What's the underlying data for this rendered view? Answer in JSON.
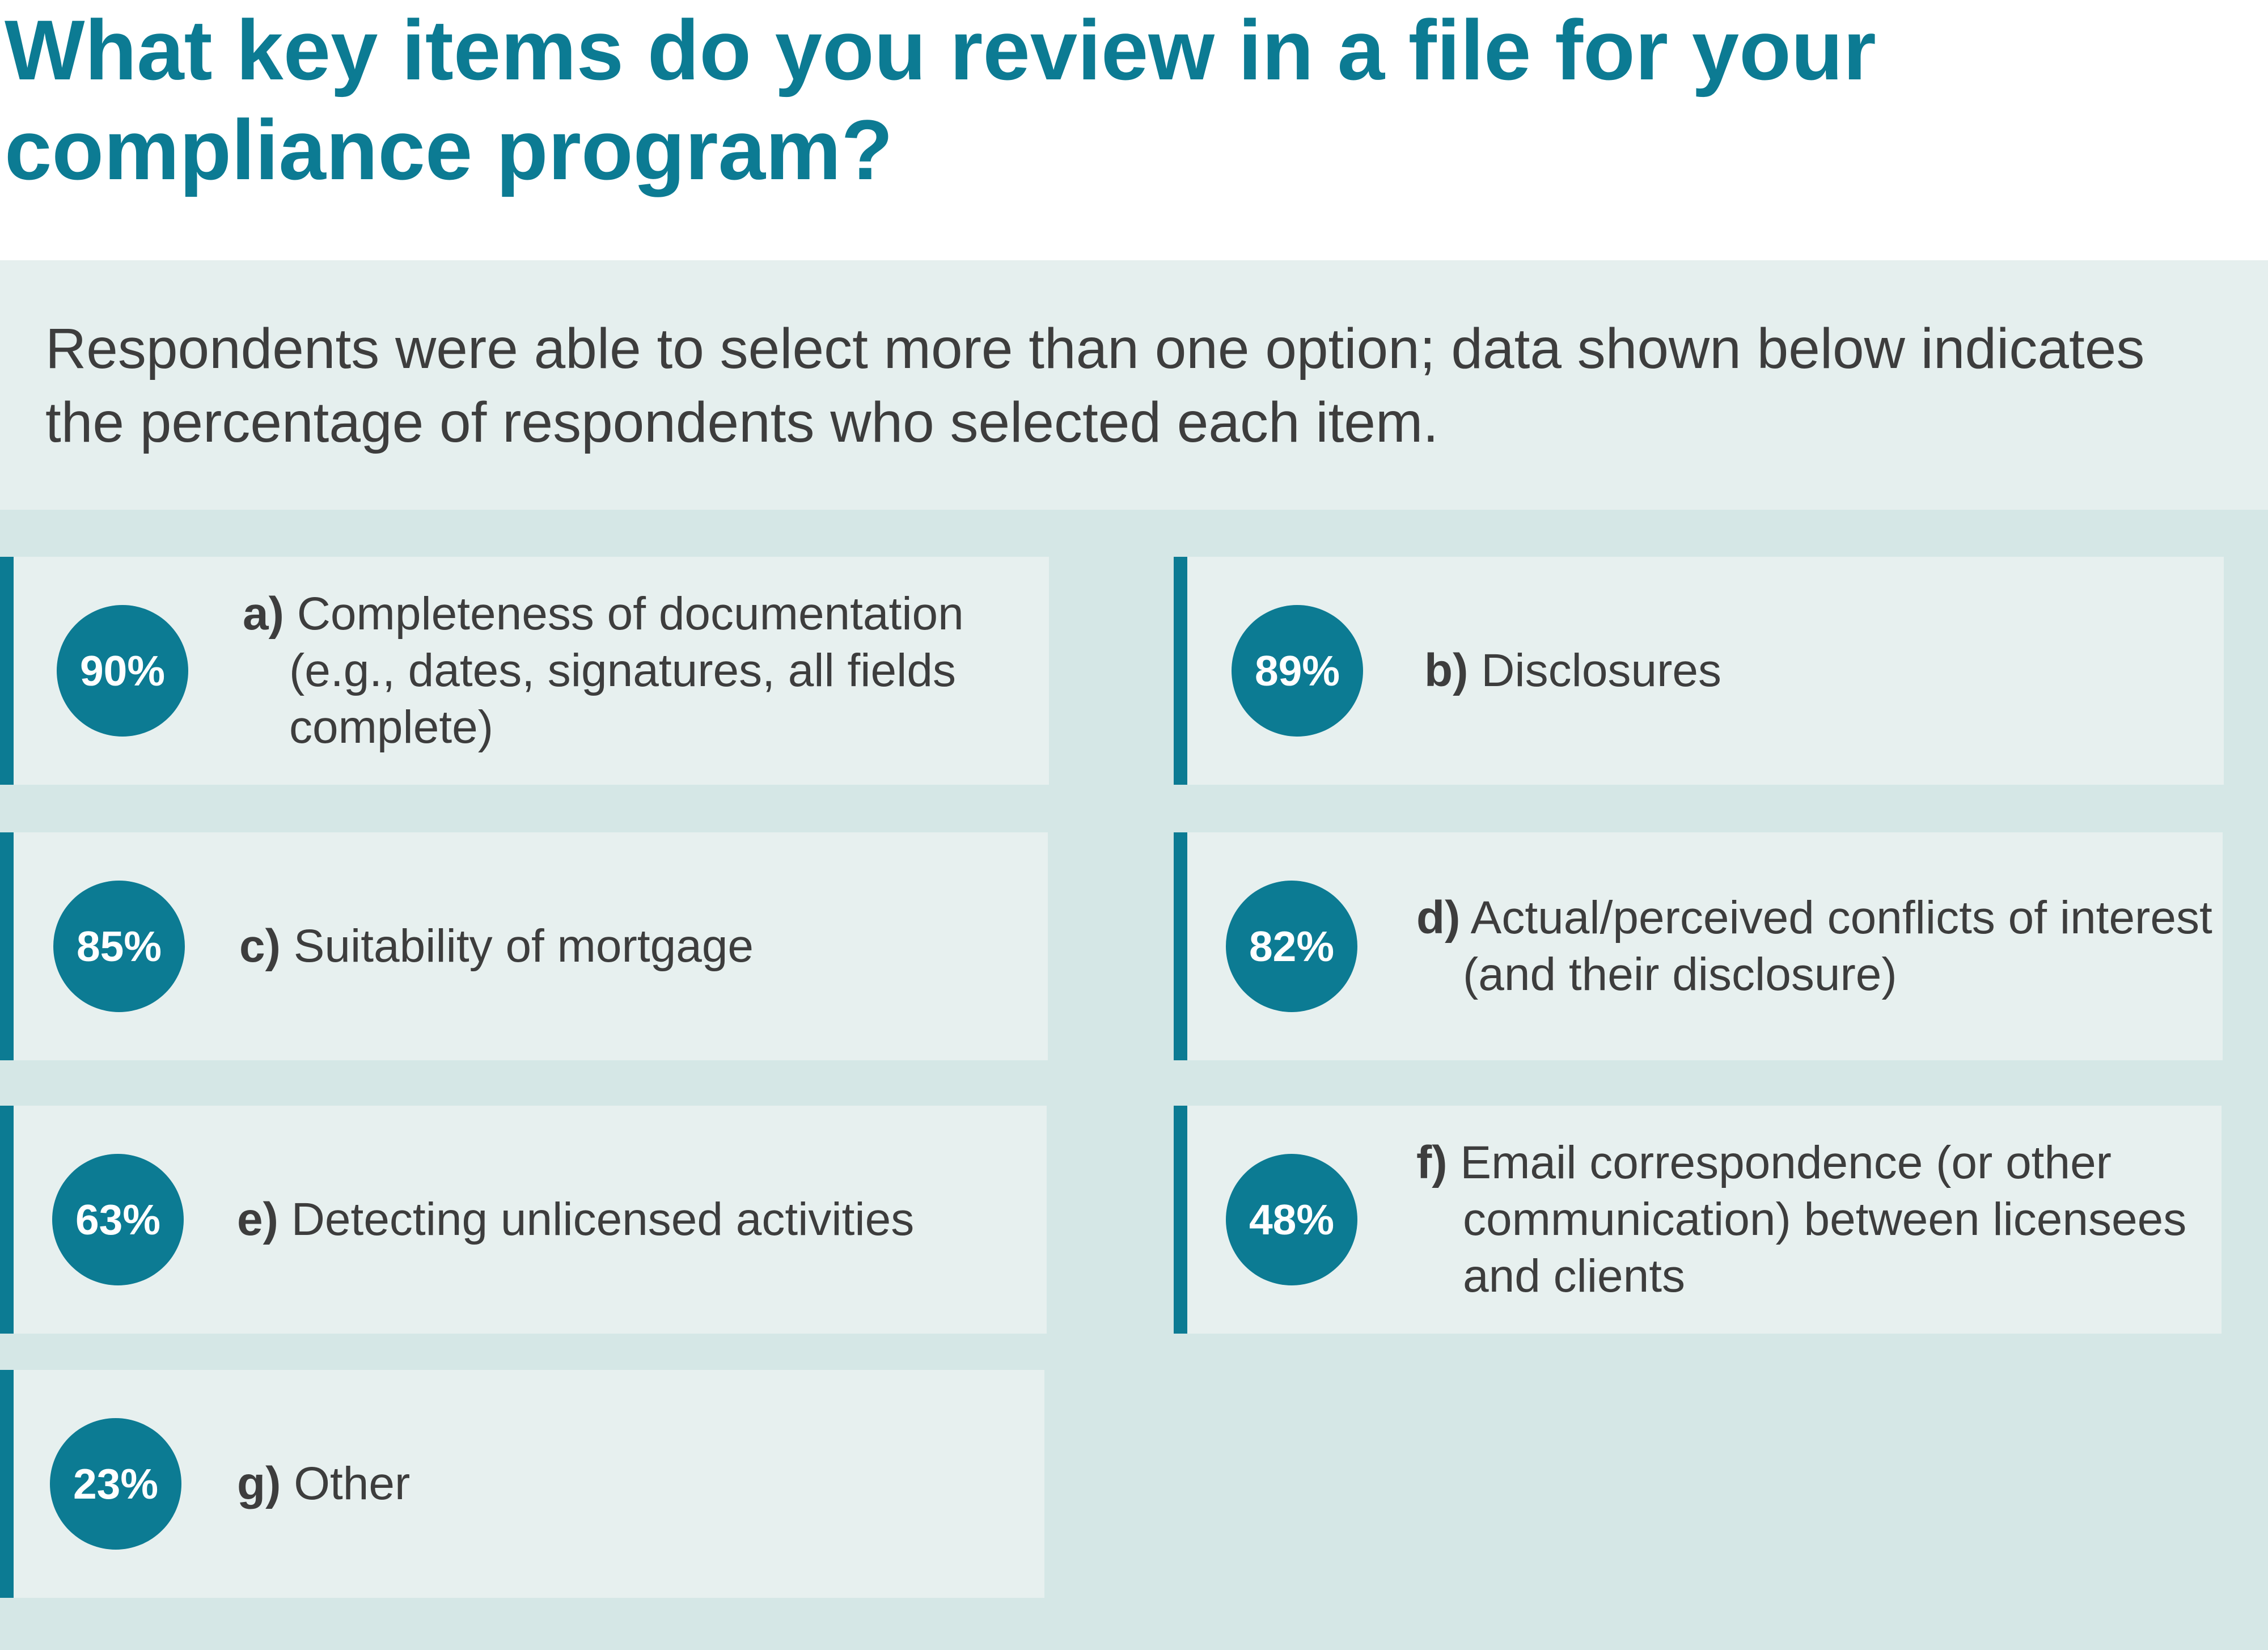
{
  "chart_data": {
    "type": "table",
    "title": "What key items do you review in a file for your compliance program?",
    "subtitle": "Respondents were able to select more than one option; data shown below indicates the percentage of respondents who selected each item.",
    "items": [
      {
        "letter": "a)",
        "label": "Completeness of documentation (e.g., dates, signatures, all fields complete)",
        "value": 90,
        "value_label": "90%"
      },
      {
        "letter": "b)",
        "label": "Disclosures",
        "value": 89,
        "value_label": "89%"
      },
      {
        "letter": "c)",
        "label": "Suitability of mortgage",
        "value": 85,
        "value_label": "85%"
      },
      {
        "letter": "d)",
        "label": "Actual/perceived conflicts of interest (and their disclosure)",
        "value": 82,
        "value_label": "82%"
      },
      {
        "letter": "e)",
        "label": "Detecting unlicensed activities",
        "value": 63,
        "value_label": "63%"
      },
      {
        "letter": "f)",
        "label": "Email correspondence (or other communication) between licensees and clients",
        "value": 48,
        "value_label": "48%"
      },
      {
        "letter": "g)",
        "label": "Other",
        "value": 23,
        "value_label": "23%"
      }
    ]
  },
  "colors": {
    "accent": "#0c7b93",
    "card": "#e7f0ef",
    "band_light": "#e5efee",
    "band_dark": "#d5e7e6",
    "text": "#3d3d3d"
  }
}
